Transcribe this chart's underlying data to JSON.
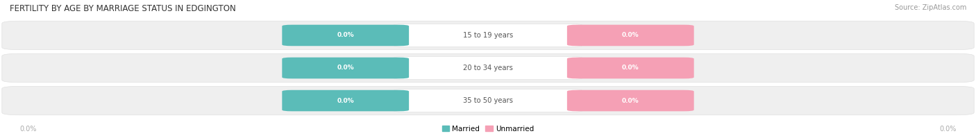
{
  "title": "FERTILITY BY AGE BY MARRIAGE STATUS IN EDGINGTON",
  "source": "Source: ZipAtlas.com",
  "age_groups": [
    "15 to 19 years",
    "20 to 34 years",
    "35 to 50 years"
  ],
  "married_values": [
    "0.0%",
    "0.0%",
    "0.0%"
  ],
  "unmarried_values": [
    "0.0%",
    "0.0%",
    "0.0%"
  ],
  "married_color": "#5bbcb8",
  "unmarried_color": "#f5a0b5",
  "bar_bg_color": "#efefef",
  "label_text_color": "#ffffff",
  "category_text_color": "#555555",
  "title_fontsize": 8.5,
  "source_fontsize": 7,
  "legend_married": "Married",
  "legend_unmarried": "Unmarried",
  "background_color": "#ffffff",
  "axis_label_color": "#aaaaaa",
  "axis_tick_value": "0.0%",
  "bar_edge_color": "#e0e0e0"
}
